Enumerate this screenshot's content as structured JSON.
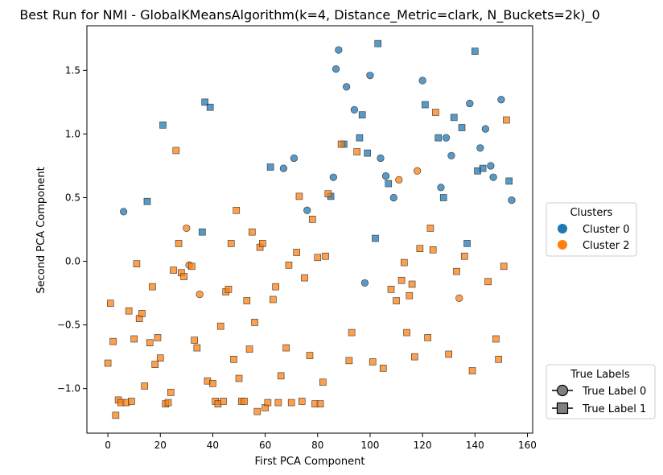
{
  "chart_data": {
    "type": "scatter",
    "title": "Best Run for NMI - GlobalKMeansAlgorithm(k=4, Distance_Metric=clark, N_Buckets=2k)_0",
    "xlabel": "First PCA Component",
    "ylabel": "Second PCA Component",
    "xlim": [
      -8,
      162
    ],
    "ylim": [
      -1.35,
      1.85
    ],
    "xticks": [
      0,
      20,
      40,
      60,
      80,
      100,
      120,
      140,
      160
    ],
    "yticks": [
      -1.0,
      -0.5,
      0.0,
      0.5,
      1.0,
      1.5
    ],
    "xtick_labels": [
      "0",
      "20",
      "40",
      "60",
      "80",
      "100",
      "120",
      "140",
      "160"
    ],
    "ytick_labels": [
      "−1.0",
      "−0.5",
      "0.0",
      "0.5",
      "1.0",
      "1.5"
    ],
    "grid": false,
    "colors": {
      "cluster0": "#1f77b4",
      "cluster2": "#ff7f0e",
      "true_label_legend": "#808080"
    },
    "legends": {
      "clusters": {
        "title": "Clusters",
        "placement": "right",
        "entries": [
          "Cluster 0",
          "Cluster 2"
        ]
      },
      "true_labels": {
        "title": "True Labels",
        "placement": "lower-right",
        "entries": [
          "True Label 0",
          "True Label 1"
        ]
      }
    },
    "series": [
      {
        "name": "Cluster 0",
        "points": [
          [
            6,
            0.39,
            0
          ],
          [
            15,
            0.47,
            1
          ],
          [
            21,
            1.07,
            1
          ],
          [
            37,
            1.25,
            1
          ],
          [
            39,
            1.21,
            1
          ],
          [
            36,
            0.23,
            1
          ],
          [
            62,
            0.74,
            1
          ],
          [
            67,
            0.73,
            0
          ],
          [
            71,
            0.81,
            0
          ],
          [
            76,
            0.4,
            0
          ],
          [
            85,
            0.51,
            1
          ],
          [
            86,
            0.66,
            0
          ],
          [
            87,
            1.51,
            0
          ],
          [
            88,
            1.66,
            0
          ],
          [
            90,
            0.92,
            1
          ],
          [
            91,
            1.37,
            0
          ],
          [
            94,
            1.19,
            0
          ],
          [
            96,
            0.97,
            1
          ],
          [
            97,
            1.15,
            1
          ],
          [
            98,
            -0.17,
            0
          ],
          [
            99,
            0.85,
            1
          ],
          [
            100,
            1.46,
            0
          ],
          [
            102,
            0.18,
            1
          ],
          [
            103,
            1.71,
            1
          ],
          [
            104,
            0.81,
            0
          ],
          [
            106,
            0.67,
            0
          ],
          [
            107,
            0.61,
            1
          ],
          [
            109,
            0.5,
            0
          ],
          [
            120,
            1.42,
            0
          ],
          [
            121,
            1.23,
            1
          ],
          [
            126,
            0.97,
            1
          ],
          [
            127,
            0.58,
            0
          ],
          [
            128,
            0.5,
            1
          ],
          [
            129,
            0.97,
            0
          ],
          [
            131,
            0.83,
            0
          ],
          [
            132,
            1.13,
            1
          ],
          [
            135,
            1.05,
            1
          ],
          [
            137,
            0.14,
            1
          ],
          [
            138,
            1.24,
            0
          ],
          [
            140,
            1.65,
            1
          ],
          [
            141,
            0.71,
            1
          ],
          [
            142,
            0.89,
            0
          ],
          [
            143,
            0.73,
            1
          ],
          [
            144,
            1.04,
            0
          ],
          [
            146,
            0.75,
            0
          ],
          [
            147,
            0.66,
            0
          ],
          [
            150,
            1.27,
            0
          ],
          [
            153,
            0.63,
            1
          ],
          [
            154,
            0.48,
            0
          ]
        ]
      },
      {
        "name": "Cluster 2",
        "points": [
          [
            0,
            -0.8,
            1
          ],
          [
            1,
            -0.33,
            1
          ],
          [
            2,
            -0.63,
            1
          ],
          [
            3,
            -1.21,
            1
          ],
          [
            4,
            -1.09,
            1
          ],
          [
            5,
            -1.11,
            1
          ],
          [
            7,
            -1.11,
            1
          ],
          [
            8,
            -0.39,
            1
          ],
          [
            9,
            -1.1,
            1
          ],
          [
            10,
            -0.61,
            1
          ],
          [
            11,
            -0.02,
            1
          ],
          [
            12,
            -0.45,
            1
          ],
          [
            13,
            -0.41,
            1
          ],
          [
            14,
            -0.98,
            1
          ],
          [
            16,
            -0.64,
            1
          ],
          [
            17,
            -0.2,
            1
          ],
          [
            18,
            -0.81,
            1
          ],
          [
            19,
            -0.6,
            1
          ],
          [
            20,
            -0.76,
            1
          ],
          [
            22,
            -1.12,
            1
          ],
          [
            23,
            -1.11,
            1
          ],
          [
            24,
            -1.03,
            1
          ],
          [
            25,
            -0.07,
            1
          ],
          [
            26,
            0.87,
            1
          ],
          [
            27,
            0.14,
            1
          ],
          [
            28,
            -0.09,
            1
          ],
          [
            29,
            -0.12,
            1
          ],
          [
            30,
            0.26,
            0
          ],
          [
            31,
            -0.03,
            0
          ],
          [
            32,
            -0.04,
            1
          ],
          [
            33,
            -0.62,
            1
          ],
          [
            34,
            -0.68,
            1
          ],
          [
            35,
            -0.26,
            0
          ],
          [
            38,
            -0.94,
            1
          ],
          [
            40,
            -0.96,
            1
          ],
          [
            41,
            -1.1,
            1
          ],
          [
            42,
            -1.12,
            1
          ],
          [
            43,
            -0.51,
            1
          ],
          [
            44,
            -1.1,
            1
          ],
          [
            45,
            -0.24,
            1
          ],
          [
            46,
            -0.22,
            1
          ],
          [
            47,
            0.14,
            1
          ],
          [
            48,
            -0.77,
            1
          ],
          [
            49,
            0.4,
            1
          ],
          [
            50,
            -0.92,
            1
          ],
          [
            51,
            -1.1,
            1
          ],
          [
            52,
            -1.1,
            1
          ],
          [
            53,
            -0.31,
            1
          ],
          [
            54,
            -0.69,
            1
          ],
          [
            55,
            0.23,
            1
          ],
          [
            56,
            -0.48,
            1
          ],
          [
            57,
            -1.18,
            1
          ],
          [
            58,
            0.11,
            1
          ],
          [
            59,
            0.14,
            1
          ],
          [
            60,
            -1.15,
            1
          ],
          [
            61,
            -1.11,
            1
          ],
          [
            63,
            -0.3,
            1
          ],
          [
            64,
            -0.2,
            1
          ],
          [
            65,
            -1.11,
            1
          ],
          [
            66,
            -0.9,
            1
          ],
          [
            68,
            -0.68,
            1
          ],
          [
            69,
            -0.03,
            1
          ],
          [
            70,
            -1.11,
            1
          ],
          [
            72,
            0.07,
            1
          ],
          [
            73,
            0.51,
            1
          ],
          [
            74,
            -1.1,
            1
          ],
          [
            75,
            -0.13,
            1
          ],
          [
            77,
            -0.74,
            1
          ],
          [
            78,
            0.33,
            1
          ],
          [
            79,
            -1.12,
            1
          ],
          [
            80,
            0.03,
            1
          ],
          [
            81,
            -1.12,
            1
          ],
          [
            82,
            -0.95,
            1
          ],
          [
            83,
            0.04,
            1
          ],
          [
            84,
            0.53,
            1
          ],
          [
            89,
            0.92,
            1
          ],
          [
            92,
            -0.78,
            1
          ],
          [
            93,
            -0.56,
            1
          ],
          [
            95,
            0.86,
            1
          ],
          [
            101,
            -0.79,
            1
          ],
          [
            105,
            -0.84,
            1
          ],
          [
            108,
            -0.22,
            1
          ],
          [
            110,
            -0.31,
            1
          ],
          [
            111,
            0.64,
            0
          ],
          [
            112,
            -0.15,
            1
          ],
          [
            113,
            -0.01,
            1
          ],
          [
            114,
            -0.56,
            1
          ],
          [
            115,
            -0.27,
            1
          ],
          [
            116,
            -0.18,
            1
          ],
          [
            117,
            -0.75,
            1
          ],
          [
            118,
            0.71,
            0
          ],
          [
            119,
            0.1,
            1
          ],
          [
            122,
            -0.6,
            1
          ],
          [
            123,
            0.26,
            1
          ],
          [
            124,
            0.09,
            1
          ],
          [
            125,
            1.17,
            1
          ],
          [
            130,
            -0.73,
            1
          ],
          [
            133,
            -0.08,
            1
          ],
          [
            134,
            -0.29,
            0
          ],
          [
            136,
            0.04,
            1
          ],
          [
            139,
            -0.86,
            1
          ],
          [
            145,
            -0.16,
            1
          ],
          [
            148,
            -0.61,
            1
          ],
          [
            149,
            -0.77,
            1
          ],
          [
            151,
            -0.04,
            1
          ],
          [
            152,
            1.11,
            1
          ]
        ]
      }
    ]
  }
}
